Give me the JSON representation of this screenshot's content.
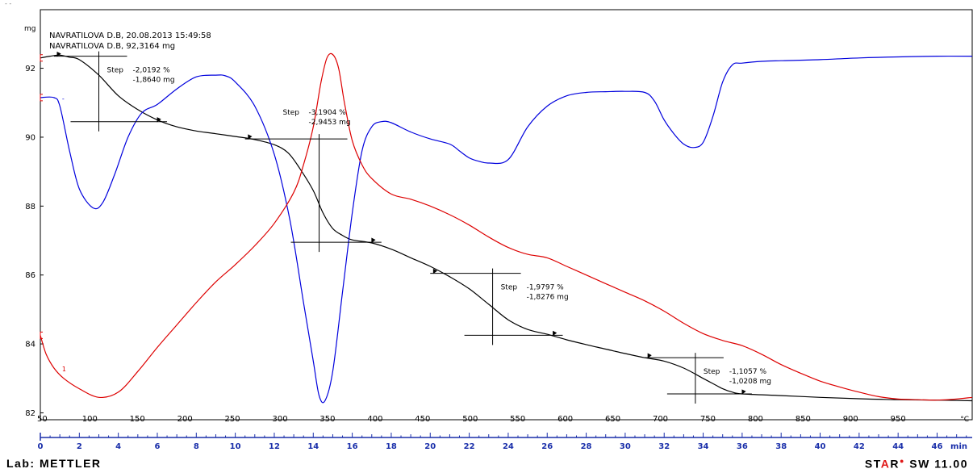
{
  "header": {
    "sample_line": "NAVRATILOVA D.B, 20.08.2013 15:49:58",
    "mass_line": "NAVRATILOVA D.B, 92,3164 mg",
    "y_unit": "mg",
    "top_marks": "- -"
  },
  "footer": {
    "lab_text": "Lab: METTLER",
    "star_prefix": "ST",
    "star_a": "A",
    "star_r": "R",
    "star_suffix": " SW 11.00"
  },
  "colors": {
    "tg": "#000000",
    "dtg": "#0000dd",
    "dta": "#dd0000",
    "axis": "#1a2faa",
    "tick_label": "#1a2faa"
  },
  "chart_data": {
    "type": "line",
    "y_unit": "mg",
    "ylim": [
      81.8,
      93.7
    ],
    "yticks": [
      82,
      84,
      86,
      88,
      90,
      92
    ],
    "time_axis": {
      "unit": "min",
      "range": [
        0,
        47.8
      ],
      "labeled_ticks": [
        0,
        2,
        4,
        6,
        8,
        10,
        12,
        14,
        16,
        18,
        20,
        22,
        24,
        26,
        28,
        30,
        32,
        34,
        36,
        38,
        40,
        42,
        44,
        46
      ]
    },
    "temperature_axis": {
      "unit": "°C",
      "labels": [
        50,
        100,
        150,
        200,
        250,
        300,
        350,
        400,
        450,
        500,
        550,
        600,
        650,
        700,
        750,
        800,
        850,
        900,
        950
      ]
    },
    "series": [
      {
        "key": "tg",
        "x": [
          0,
          0.5,
          1.0,
          1.5,
          2.0,
          3.0,
          4.0,
          5.0,
          6.0,
          7.0,
          8.0,
          9.0,
          10.0,
          11.0,
          12.0,
          12.7,
          13.3,
          14.0,
          14.5,
          15.0,
          15.5,
          16.0,
          17.0,
          18.0,
          19.0,
          20.0,
          21.0,
          22.0,
          23.0,
          24.0,
          25.0,
          26.0,
          27.0,
          28.0,
          29.0,
          30.0,
          31.0,
          32.0,
          33.0,
          34.0,
          35.0,
          35.5,
          36.0,
          38.0,
          40.0,
          42.0,
          44.0,
          46.0,
          47.8
        ],
        "y": [
          92.3,
          92.35,
          92.38,
          92.32,
          92.25,
          91.8,
          91.2,
          90.8,
          90.5,
          90.3,
          90.18,
          90.1,
          90.02,
          89.93,
          89.78,
          89.55,
          89.1,
          88.45,
          87.8,
          87.35,
          87.15,
          87.02,
          86.93,
          86.75,
          86.5,
          86.25,
          85.95,
          85.6,
          85.15,
          84.7,
          84.42,
          84.28,
          84.12,
          83.98,
          83.85,
          83.72,
          83.6,
          83.5,
          83.3,
          83.0,
          82.7,
          82.6,
          82.55,
          82.5,
          82.45,
          82.41,
          82.38,
          82.37,
          82.35
        ]
      },
      {
        "key": "dtg",
        "x": [
          0,
          0.7,
          1.0,
          1.5,
          2.0,
          2.7,
          3.2,
          3.8,
          4.5,
          5.2,
          6.0,
          7.0,
          8.0,
          9.0,
          9.5,
          10.0,
          11.0,
          12.0,
          12.8,
          13.5,
          14.0,
          14.3,
          14.6,
          15.0,
          15.5,
          16.0,
          16.5,
          17.0,
          17.5,
          18.0,
          19.0,
          20.0,
          21.0,
          21.5,
          22.0,
          22.5,
          23.0,
          24.0,
          25.0,
          26.0,
          27.0,
          28.0,
          29.0,
          30.0,
          31.0,
          31.5,
          32.0,
          32.5,
          33.0,
          33.5,
          34.0,
          34.5,
          35.0,
          35.5,
          36.0,
          37.0,
          38.0,
          40.0,
          42.0,
          44.0,
          46.0,
          47.8
        ],
        "y": [
          91.15,
          91.15,
          90.9,
          89.6,
          88.5,
          87.95,
          88.1,
          88.9,
          90.0,
          90.7,
          90.95,
          91.4,
          91.75,
          91.8,
          91.78,
          91.6,
          90.9,
          89.5,
          87.6,
          85.2,
          83.5,
          82.5,
          82.35,
          83.2,
          85.5,
          87.8,
          89.6,
          90.3,
          90.45,
          90.42,
          90.15,
          89.95,
          89.8,
          89.6,
          89.4,
          89.3,
          89.25,
          89.35,
          90.3,
          90.9,
          91.2,
          91.3,
          91.32,
          91.33,
          91.3,
          91.05,
          90.5,
          90.1,
          89.8,
          89.7,
          89.85,
          90.6,
          91.6,
          92.1,
          92.15,
          92.2,
          92.22,
          92.25,
          92.3,
          92.33,
          92.35,
          92.35
        ],
        "marker_label": "-"
      },
      {
        "key": "dta",
        "x": [
          0,
          0.3,
          0.7,
          1.2,
          2.0,
          3.0,
          4.0,
          5.0,
          6.0,
          7.0,
          8.0,
          9.0,
          10.0,
          11.0,
          12.0,
          13.0,
          13.5,
          14.0,
          14.4,
          14.7,
          15.0,
          15.3,
          15.6,
          16.0,
          16.5,
          17.0,
          18.0,
          19.0,
          20.0,
          21.0,
          22.0,
          23.0,
          24.0,
          25.0,
          26.0,
          27.0,
          28.0,
          29.0,
          30.0,
          31.0,
          32.0,
          33.0,
          34.0,
          35.0,
          36.0,
          37.0,
          38.0,
          39.0,
          40.0,
          41.0,
          42.0,
          43.0,
          44.0,
          45.0,
          46.0,
          47.0,
          47.8
        ],
        "y": [
          84.25,
          83.7,
          83.3,
          83.0,
          82.7,
          82.45,
          82.6,
          83.2,
          83.9,
          84.55,
          85.2,
          85.8,
          86.3,
          86.85,
          87.5,
          88.4,
          89.2,
          90.3,
          91.6,
          92.3,
          92.4,
          92.0,
          91.0,
          89.9,
          89.2,
          88.8,
          88.35,
          88.2,
          88.0,
          87.75,
          87.45,
          87.1,
          86.8,
          86.6,
          86.5,
          86.25,
          86.0,
          85.75,
          85.5,
          85.25,
          84.95,
          84.6,
          84.3,
          84.1,
          83.95,
          83.7,
          83.4,
          83.15,
          82.92,
          82.75,
          82.6,
          82.47,
          82.4,
          82.38,
          82.37,
          82.4,
          82.45
        ],
        "marker_label": "1"
      }
    ],
    "steps": [
      {
        "label": "Step",
        "percent": "-2,0192 %",
        "mass": "-1,8640 mg",
        "x_start": 0.7,
        "x_end": 6.0,
        "y_start": 92.35,
        "y_end": 90.45,
        "x_mid": 3.0
      },
      {
        "label": "Step",
        "percent": "-3,1904 %",
        "mass": "-2,9453 mg",
        "x_start": 10.5,
        "x_end": 17.0,
        "y_start": 89.95,
        "y_end": 86.95,
        "x_mid": 14.3
      },
      {
        "label": "Step",
        "percent": "-1,9797 %",
        "mass": "-1,8276 mg",
        "x_start": 20.0,
        "x_end": 26.3,
        "y_start": 86.05,
        "y_end": 84.25,
        "x_mid": 23.2
      },
      {
        "label": "Step",
        "percent": "-1,1057 %",
        "mass": "-1,0208 mg",
        "x_start": 31.0,
        "x_end": 36.0,
        "y_start": 83.6,
        "y_end": 82.55,
        "x_mid": 33.6
      }
    ]
  }
}
